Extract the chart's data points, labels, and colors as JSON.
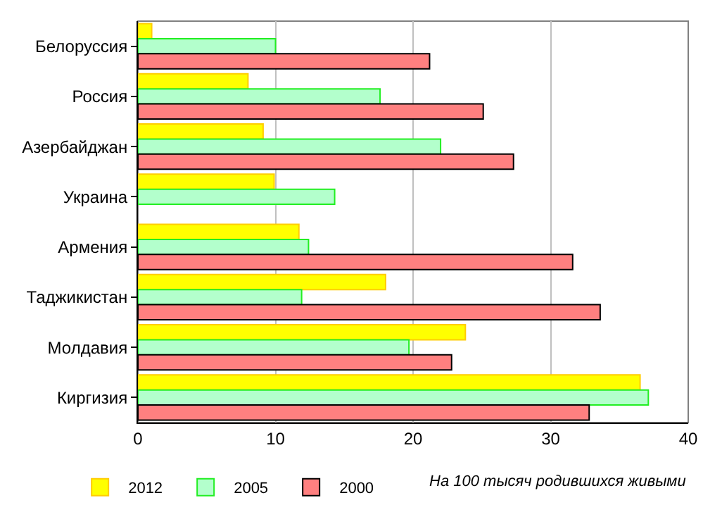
{
  "chart_data": {
    "type": "bar",
    "orientation": "horizontal",
    "categories": [
      "Белоруссия",
      "Россия",
      "Азербайджан",
      "Украина",
      "Армения",
      "Таджикистан",
      "Молдавия",
      "Киргизия"
    ],
    "series": [
      {
        "name": "2012",
        "color": "#ffff00",
        "values": [
          1.0,
          8.0,
          9.1,
          9.9,
          11.7,
          18.0,
          23.8,
          36.5
        ]
      },
      {
        "name": "2005",
        "color": "#b3ffcc",
        "values": [
          10.0,
          17.6,
          22.0,
          14.3,
          12.4,
          11.9,
          19.7,
          37.1
        ]
      },
      {
        "name": "2000",
        "color": "#ff8080",
        "values": [
          21.2,
          25.1,
          27.3,
          null,
          31.6,
          33.6,
          22.8,
          32.8
        ]
      }
    ],
    "xlim": [
      0,
      40
    ],
    "xticks": [
      0,
      10,
      20,
      30,
      40
    ],
    "grid": "x",
    "legend": "bottom left",
    "annotations": [
      "На 100 тысяч родившихся живыми"
    ]
  }
}
